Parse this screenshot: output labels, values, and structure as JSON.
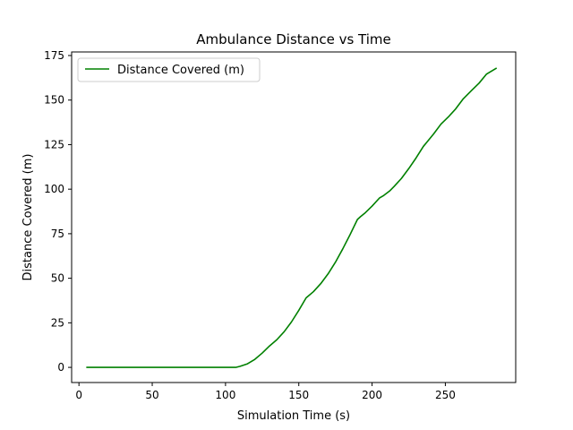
{
  "chart_data": {
    "type": "line",
    "title": "Ambulance Distance vs Time",
    "xlabel": "Simulation Time (s)",
    "ylabel": "Distance Covered (m)",
    "xlim": [
      -5,
      298
    ],
    "ylim": [
      -8.5,
      177
    ],
    "xticks": [
      0,
      50,
      100,
      150,
      200,
      250
    ],
    "yticks": [
      0,
      25,
      50,
      75,
      100,
      125,
      150,
      175
    ],
    "grid": false,
    "legend_position": "upper-left",
    "series": [
      {
        "name": "Distance Covered (m)",
        "color": "#008000",
        "x": [
          5,
          20,
          40,
          60,
          80,
          100,
          107,
          110,
          115,
          120,
          125,
          130,
          135,
          140,
          145,
          150,
          155,
          160,
          165,
          170,
          175,
          180,
          185,
          190,
          192,
          195,
          200,
          205,
          208,
          212,
          215,
          220,
          225,
          230,
          235,
          238,
          242,
          247,
          252,
          257,
          262,
          268,
          273,
          278,
          285
        ],
        "y": [
          0,
          0,
          0,
          0,
          0,
          0,
          0,
          0.6,
          2,
          4.5,
          8,
          12,
          15.5,
          20,
          25.5,
          32,
          39,
          42.5,
          47,
          52.5,
          59,
          66.5,
          74.5,
          83,
          84.5,
          86.5,
          90.5,
          95,
          96.5,
          99,
          101.5,
          106,
          111.5,
          117.5,
          124,
          127,
          131,
          136.5,
          140.5,
          145,
          150.5,
          155.5,
          159.5,
          164.5,
          168
        ]
      }
    ]
  }
}
